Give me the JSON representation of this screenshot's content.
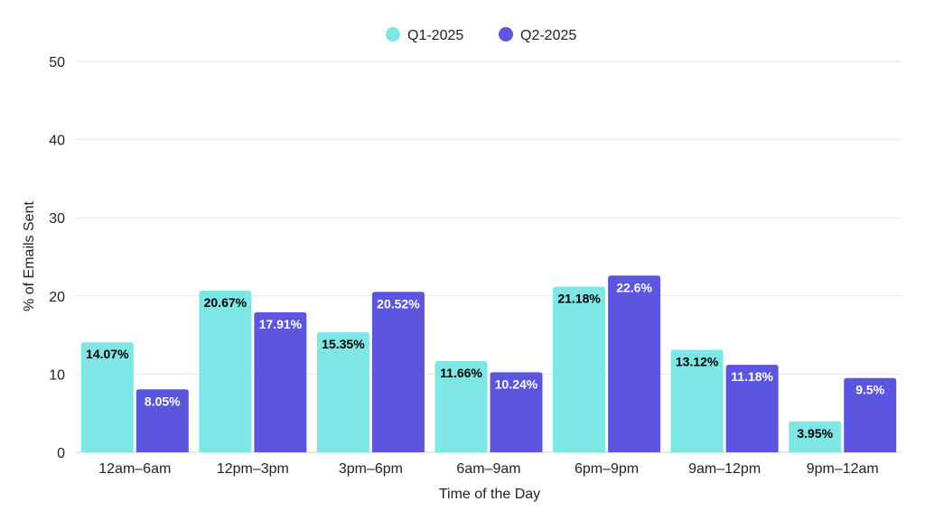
{
  "chart_data": {
    "type": "bar",
    "title": "",
    "xlabel": "Time of the Day",
    "ylabel": "% of Emails Sent",
    "ylim": [
      0,
      50
    ],
    "yticks": [
      0,
      10,
      20,
      30,
      40,
      50
    ],
    "grid": true,
    "legend_position": "top-center",
    "categories": [
      "12am–6am",
      "12pm–3pm",
      "3pm–6pm",
      "6am–9am",
      "6pm–9pm",
      "9am–12pm",
      "9pm–12am"
    ],
    "series": [
      {
        "name": "Q1-2025",
        "color": "#7fe6e6",
        "label_color": "#000000",
        "values": [
          14.07,
          20.67,
          15.35,
          11.66,
          21.18,
          13.12,
          3.95
        ],
        "labels": [
          "14.07%",
          "20.67%",
          "15.35%",
          "11.66%",
          "21.18%",
          "13.12%",
          "3.95%"
        ]
      },
      {
        "name": "Q2-2025",
        "color": "#5b55e0",
        "label_color": "#ffffff",
        "values": [
          8.05,
          17.91,
          20.52,
          10.24,
          22.6,
          11.18,
          9.5
        ],
        "labels": [
          "8.05%",
          "17.91%",
          "20.52%",
          "10.24%",
          "22.6%",
          "11.18%",
          "9.5%"
        ]
      }
    ]
  }
}
